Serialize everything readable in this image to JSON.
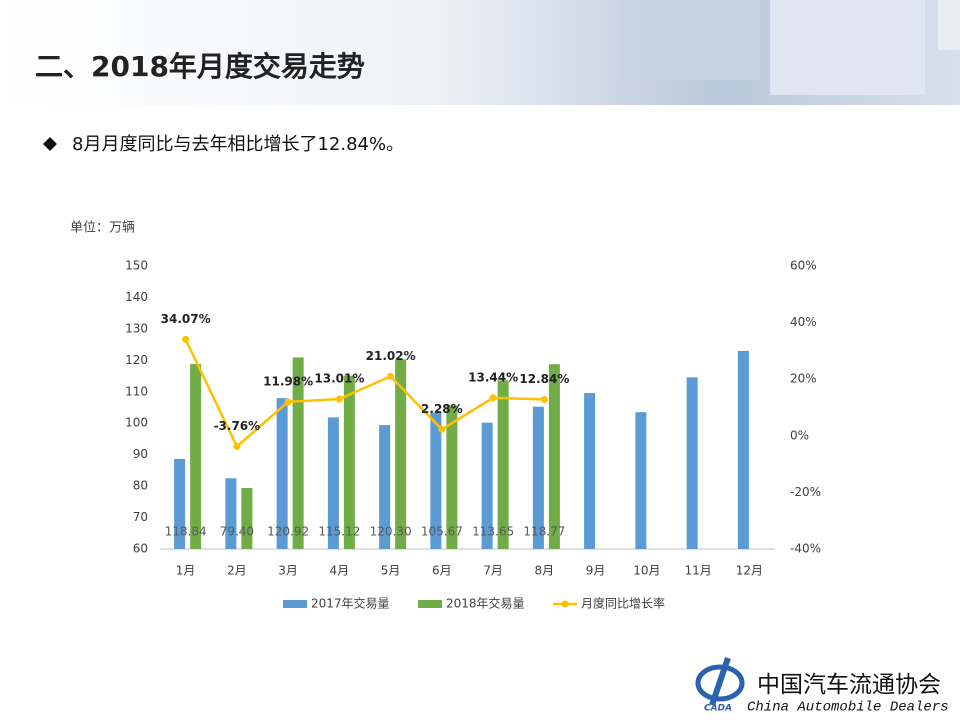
{
  "slide": {
    "title": "二、2018年月度交易走势",
    "bullet": "8月月度同比与去年相比增长了12.84%。",
    "logo_cn": "中国汽车流通协会",
    "logo_en": "China  Automobile Dealers",
    "logo_mark": "CADA"
  },
  "chart_data": {
    "type": "bar_line",
    "unit": "单位：万辆",
    "categories": [
      "1月",
      "2月",
      "3月",
      "4月",
      "5月",
      "6月",
      "7月",
      "8月",
      "9月",
      "10月",
      "11月",
      "12月"
    ],
    "series": [
      {
        "name": "2017年交易量",
        "color": "#5b9bd5",
        "values": [
          88.64,
          82.5,
          107.98,
          101.87,
          99.41,
          103.31,
          100.18,
          105.26,
          109.6,
          103.5,
          114.6,
          123
        ]
      },
      {
        "name": "2018年交易量",
        "color": "#70ad47",
        "values": [
          118.84,
          79.4,
          120.92,
          115.12,
          120.3,
          105.67,
          113.65,
          118.77,
          null,
          null,
          null,
          null
        ],
        "value_labels": [
          "118.84",
          "79.40",
          "120.92",
          "115.12",
          "120.30",
          "105.67",
          "113.65",
          "118.77",
          null,
          null,
          null,
          null
        ]
      },
      {
        "name": "月度同比增长率",
        "color": "#ffc000",
        "axis": "y2",
        "values": [
          34.07,
          -3.76,
          11.98,
          13.01,
          21.02,
          2.28,
          13.44,
          12.84,
          null,
          null,
          null,
          null
        ],
        "value_labels": [
          "34.07%",
          "-3.76%",
          "11.98%",
          "13.01%",
          "21.02%",
          "2.28%",
          "13.44%",
          "12.84%",
          null,
          null,
          null,
          null
        ]
      }
    ],
    "ylim": [
      60,
      150
    ],
    "yticks": [
      60,
      70,
      80,
      90,
      100,
      110,
      120,
      130,
      140,
      150
    ],
    "y2lim": [
      -40,
      60
    ],
    "y2ticks": [
      {
        "value": -40,
        "label": "-40%"
      },
      {
        "value": -20,
        "label": "-20%"
      },
      {
        "value": 0,
        "label": "0%"
      },
      {
        "value": 20,
        "label": "20%"
      },
      {
        "value": 40,
        "label": "40%"
      },
      {
        "value": 60,
        "label": "60%"
      }
    ],
    "grid": false,
    "legend": "bottom"
  }
}
